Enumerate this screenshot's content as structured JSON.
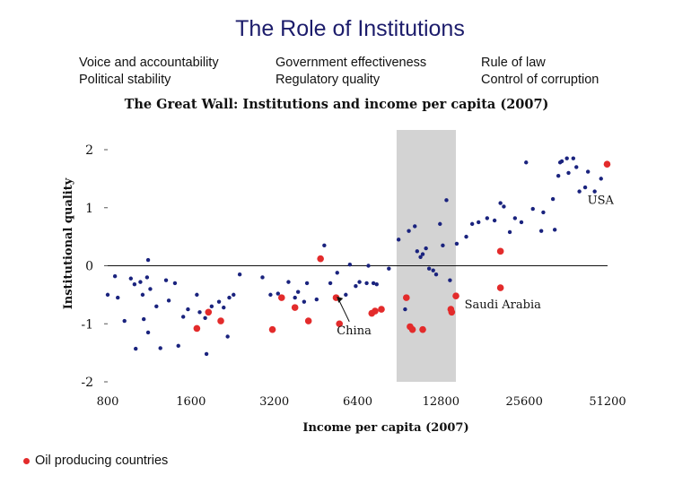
{
  "slide_title": "The Role of Institutions",
  "indicators": {
    "col1": [
      "Voice and accountability",
      "Political stability"
    ],
    "col2": [
      "Government effectiveness",
      "Regulatory quality"
    ],
    "col3": [
      "Rule of law",
      "Control of corruption"
    ]
  },
  "legend_label": "Oil producing countries",
  "colors": {
    "regular": "#1a237e",
    "oil": "#e32b2b",
    "band": "#d3d3d3"
  },
  "chart_data": {
    "type": "scatter",
    "title": "The Great Wall: Institutions and income per capita (2007)",
    "xlabel": "Income per capita (2007)",
    "ylabel": "Institutional quality",
    "x_scale": "log2",
    "xlim": [
      800,
      51200
    ],
    "ylim": [
      -2,
      2
    ],
    "x_ticks": [
      800,
      1600,
      3200,
      6400,
      12800,
      25600,
      51200
    ],
    "x_tick_labels": [
      "800",
      "1600",
      "3200",
      "6400",
      "12800",
      "25600",
      "51200"
    ],
    "y_ticks": [
      2,
      1,
      0,
      -1,
      -2
    ],
    "y_tick_labels": [
      "2",
      "1",
      "0",
      "-1",
      "-2"
    ],
    "shaded_band_x": [
      8850,
      14500
    ],
    "annotations": [
      {
        "label": "China",
        "point": [
          5300,
          -0.5
        ],
        "arrow": true
      },
      {
        "label": "Saudi Arabia",
        "point": [
          21000,
          -0.38
        ],
        "arrow": false
      },
      {
        "label": "USA",
        "point": [
          46000,
          1.28
        ],
        "arrow": false
      }
    ],
    "series": [
      {
        "name": "",
        "points": [
          [
            800,
            -0.5
          ],
          [
            850,
            -0.18
          ],
          [
            870,
            -0.55
          ],
          [
            920,
            -0.95
          ],
          [
            970,
            -0.22
          ],
          [
            1000,
            -0.32
          ],
          [
            1010,
            -1.43
          ],
          [
            1050,
            -0.28
          ],
          [
            1070,
            -0.5
          ],
          [
            1080,
            -0.92
          ],
          [
            1110,
            -0.2
          ],
          [
            1120,
            -1.15
          ],
          [
            1120,
            0.1
          ],
          [
            1140,
            -0.4
          ],
          [
            1200,
            -0.7
          ],
          [
            1240,
            -1.42
          ],
          [
            1300,
            -0.25
          ],
          [
            1330,
            -0.6
          ],
          [
            1400,
            -0.3
          ],
          [
            1440,
            -1.38
          ],
          [
            1500,
            -0.88
          ],
          [
            1560,
            -0.75
          ],
          [
            1680,
            -0.5
          ],
          [
            1720,
            -0.8
          ],
          [
            1800,
            -0.9
          ],
          [
            1820,
            -1.52
          ],
          [
            1900,
            -0.7
          ],
          [
            2020,
            -0.62
          ],
          [
            2100,
            -0.72
          ],
          [
            2170,
            -1.22
          ],
          [
            2200,
            -0.55
          ],
          [
            2280,
            -0.5
          ],
          [
            2400,
            -0.15
          ],
          [
            2900,
            -0.2
          ],
          [
            3100,
            -0.5
          ],
          [
            3300,
            -0.48
          ],
          [
            3600,
            -0.28
          ],
          [
            3800,
            -0.55
          ],
          [
            3900,
            -0.45
          ],
          [
            4100,
            -0.62
          ],
          [
            4200,
            -0.3
          ],
          [
            4550,
            -0.58
          ],
          [
            4850,
            0.35
          ],
          [
            5100,
            -0.3
          ],
          [
            5400,
            -0.12
          ],
          [
            5800,
            -0.5
          ],
          [
            6000,
            0.02
          ],
          [
            6300,
            -0.35
          ],
          [
            6500,
            -0.28
          ],
          [
            6900,
            -0.3
          ],
          [
            7000,
            0.0
          ],
          [
            7300,
            -0.3
          ],
          [
            7500,
            -0.32
          ],
          [
            8300,
            -0.05
          ],
          [
            9000,
            0.45
          ],
          [
            9500,
            -0.75
          ],
          [
            9800,
            0.6
          ],
          [
            10300,
            0.68
          ],
          [
            10500,
            0.25
          ],
          [
            10800,
            0.15
          ],
          [
            11000,
            0.2
          ],
          [
            11300,
            0.3
          ],
          [
            11600,
            -0.05
          ],
          [
            12000,
            -0.08
          ],
          [
            12300,
            -0.15
          ],
          [
            12700,
            0.72
          ],
          [
            13000,
            0.35
          ],
          [
            13400,
            1.13
          ],
          [
            13800,
            -0.25
          ],
          [
            14600,
            0.38
          ],
          [
            15800,
            0.5
          ],
          [
            16600,
            0.72
          ],
          [
            17500,
            0.75
          ],
          [
            18800,
            0.82
          ],
          [
            20000,
            0.78
          ],
          [
            21000,
            1.08
          ],
          [
            21600,
            1.02
          ],
          [
            22700,
            0.58
          ],
          [
            23700,
            0.82
          ],
          [
            25000,
            0.75
          ],
          [
            26000,
            1.78
          ],
          [
            27500,
            0.98
          ],
          [
            29500,
            0.6
          ],
          [
            30000,
            0.92
          ],
          [
            32500,
            1.15
          ],
          [
            33000,
            0.62
          ],
          [
            34000,
            1.55
          ],
          [
            34500,
            1.78
          ],
          [
            35000,
            1.8
          ],
          [
            36500,
            1.85
          ],
          [
            37000,
            1.6
          ],
          [
            38500,
            1.85
          ],
          [
            39500,
            1.7
          ],
          [
            40500,
            1.28
          ],
          [
            42500,
            1.35
          ],
          [
            43500,
            1.62
          ],
          [
            46000,
            1.28
          ],
          [
            48500,
            1.5
          ]
        ]
      },
      {
        "name": "Oil producing countries",
        "points": [
          [
            1680,
            -1.08
          ],
          [
            1850,
            -0.8
          ],
          [
            2050,
            -0.95
          ],
          [
            3150,
            -1.1
          ],
          [
            3400,
            -0.55
          ],
          [
            3800,
            -0.72
          ],
          [
            4250,
            -0.95
          ],
          [
            4700,
            0.12
          ],
          [
            5350,
            -0.55
          ],
          [
            5500,
            -1.0
          ],
          [
            7200,
            -0.82
          ],
          [
            7400,
            -0.78
          ],
          [
            7800,
            -0.75
          ],
          [
            9600,
            -0.55
          ],
          [
            9900,
            -1.05
          ],
          [
            10100,
            -1.1
          ],
          [
            11000,
            -1.1
          ],
          [
            13900,
            -0.75
          ],
          [
            14000,
            -0.8
          ],
          [
            14500,
            -0.52
          ],
          [
            21000,
            0.25
          ],
          [
            21000,
            -0.38
          ],
          [
            51000,
            1.75
          ]
        ]
      }
    ]
  }
}
